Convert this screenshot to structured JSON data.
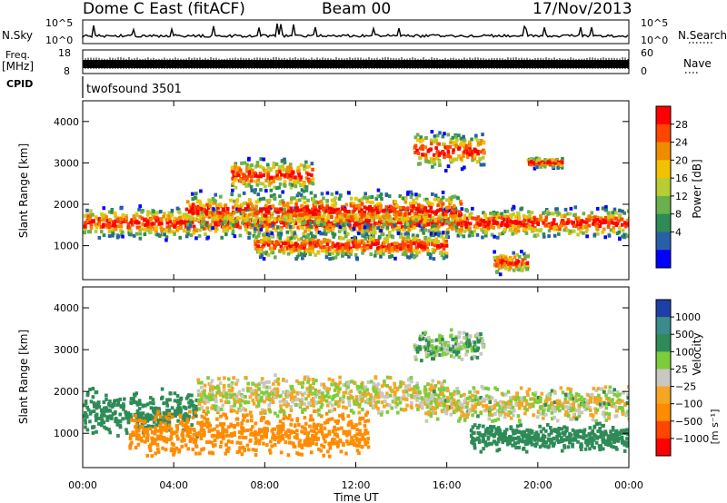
{
  "header": {
    "station": "Dome C East (fitACF)",
    "beam": "Beam 00",
    "date": "17/Nov/2013"
  },
  "top_panels": {
    "nsky_label": "N.Sky",
    "nsky_ticks": [
      "10^5",
      "10^0"
    ],
    "nsearch_label": "N.Search",
    "nsearch_ticks": [
      "10^5",
      "10^0"
    ],
    "freq_label": "Freq.",
    "freq_unit": "[MHz]",
    "freq_ticks": [
      "18",
      "8"
    ],
    "nave_label": "Nave",
    "nave_ticks": [
      "60",
      "0"
    ],
    "cpid_label": "CPID",
    "cpid_value": "twofsound 3501"
  },
  "chart_data": [
    {
      "type": "heatmap",
      "name": "power",
      "ylabel": "Slant Range [km]",
      "ylim": [
        180,
        4500
      ],
      "yticks": [
        "1000",
        "2000",
        "3000",
        "4000"
      ],
      "xlim": [
        0,
        24
      ],
      "colorbar_label": "Power [dB]",
      "colorbar_ticks": [
        "4",
        "8",
        "12",
        "16",
        "20",
        "24",
        "28"
      ],
      "colorbar_colors": [
        "#0000ff",
        "#2860a8",
        "#2e8b57",
        "#6ab04c",
        "#b8cc33",
        "#f2c200",
        "#f08c00",
        "#ff4500",
        "#ff0000"
      ],
      "echo_bands": [
        {
          "start_h": 0.0,
          "end_h": 24.0,
          "center_km": 1550,
          "width_km": 420
        },
        {
          "start_h": 4.5,
          "end_h": 16.5,
          "center_km": 1850,
          "width_km": 500
        },
        {
          "start_h": 6.5,
          "end_h": 10.0,
          "center_km": 2700,
          "width_km": 450
        },
        {
          "start_h": 7.5,
          "end_h": 16.0,
          "center_km": 1000,
          "width_km": 350
        },
        {
          "start_h": 14.5,
          "end_h": 17.5,
          "center_km": 3300,
          "width_km": 500
        },
        {
          "start_h": 18.0,
          "end_h": 19.5,
          "center_km": 600,
          "width_km": 300
        },
        {
          "start_h": 19.5,
          "end_h": 21.0,
          "center_km": 3000,
          "width_km": 150
        }
      ]
    },
    {
      "type": "heatmap",
      "name": "velocity",
      "ylabel": "Slant Range [km]",
      "ylim": [
        180,
        4500
      ],
      "yticks": [
        "1000",
        "2000",
        "3000",
        "4000"
      ],
      "xlim": [
        0,
        24
      ],
      "xticks": [
        "00:00",
        "04:00",
        "08:00",
        "12:00",
        "16:00",
        "20:00",
        "00:00"
      ],
      "xlabel": "Time UT",
      "colorbar_label": "Velocity",
      "colorbar_unit": "[m s⁻¹]",
      "colorbar_ticks": [
        "1000",
        "500",
        "100",
        "25",
        "−25",
        "−100",
        "−500",
        "−1000"
      ],
      "colorbar_colors": [
        "#1f3fa8",
        "#3c8a8a",
        "#2e8b57",
        "#7ccd3c",
        "#c8c8c0",
        "#f5a623",
        "#ff8c00",
        "#ff4500",
        "#ff0000"
      ],
      "echo_bands": [
        {
          "start_h": 0.0,
          "end_h": 5.0,
          "center_km": 1500,
          "width_km": 600,
          "v_ms": 200
        },
        {
          "start_h": 2.0,
          "end_h": 12.5,
          "center_km": 1000,
          "width_km": 600,
          "v_ms": -300
        },
        {
          "start_h": 5.0,
          "end_h": 16.0,
          "center_km": 1900,
          "width_km": 500,
          "v_ms": 0
        },
        {
          "start_h": 15.0,
          "end_h": 24.0,
          "center_km": 1700,
          "width_km": 450,
          "v_ms": 10
        },
        {
          "start_h": 17.0,
          "end_h": 24.0,
          "center_km": 900,
          "width_km": 350,
          "v_ms": 300
        },
        {
          "start_h": 14.5,
          "end_h": 17.5,
          "center_km": 3100,
          "width_km": 400,
          "v_ms": 80
        }
      ]
    }
  ]
}
